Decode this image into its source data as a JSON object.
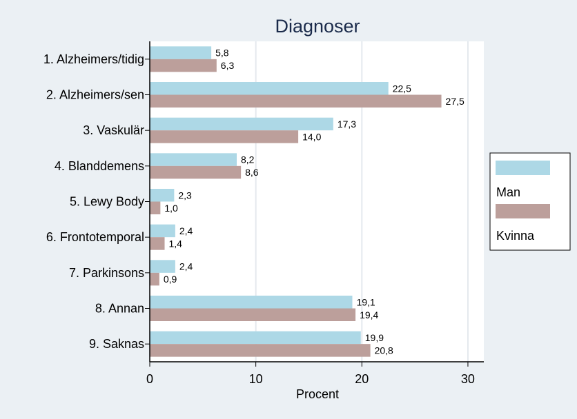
{
  "chart_data": {
    "type": "bar",
    "orientation": "horizontal",
    "title": "Diagnoser",
    "xlabel": "Procent",
    "ylabel": "",
    "xlim": [
      0,
      31.5
    ],
    "xticks": [
      0,
      10,
      20,
      30
    ],
    "grid": true,
    "legend_position": "right",
    "categories": [
      "1. Alzheimers/tidig",
      "2. Alzheimers/sen",
      "3. Vaskulär",
      "4. Blanddemens",
      "5. Lewy Body",
      "6. Frontotemporal",
      "7. Parkinsons",
      "8. Annan",
      "9. Saknas"
    ],
    "series": [
      {
        "name": "Man",
        "color": "#add8e6",
        "values": [
          5.8,
          22.5,
          17.3,
          8.2,
          2.3,
          2.4,
          2.4,
          19.1,
          19.9
        ],
        "labels": [
          "5,8",
          "22,5",
          "17,3",
          "8,2",
          "2,3",
          "2,4",
          "2,4",
          "19,1",
          "19,9"
        ]
      },
      {
        "name": "Kvinna",
        "color": "#bc9f9b",
        "values": [
          6.3,
          27.5,
          14.0,
          8.6,
          1.0,
          1.4,
          0.9,
          19.4,
          20.8
        ],
        "labels": [
          "6,3",
          "27,5",
          "14,0",
          "8,6",
          "1,0",
          "1,4",
          "0,9",
          "19,4",
          "20,8"
        ]
      }
    ]
  }
}
